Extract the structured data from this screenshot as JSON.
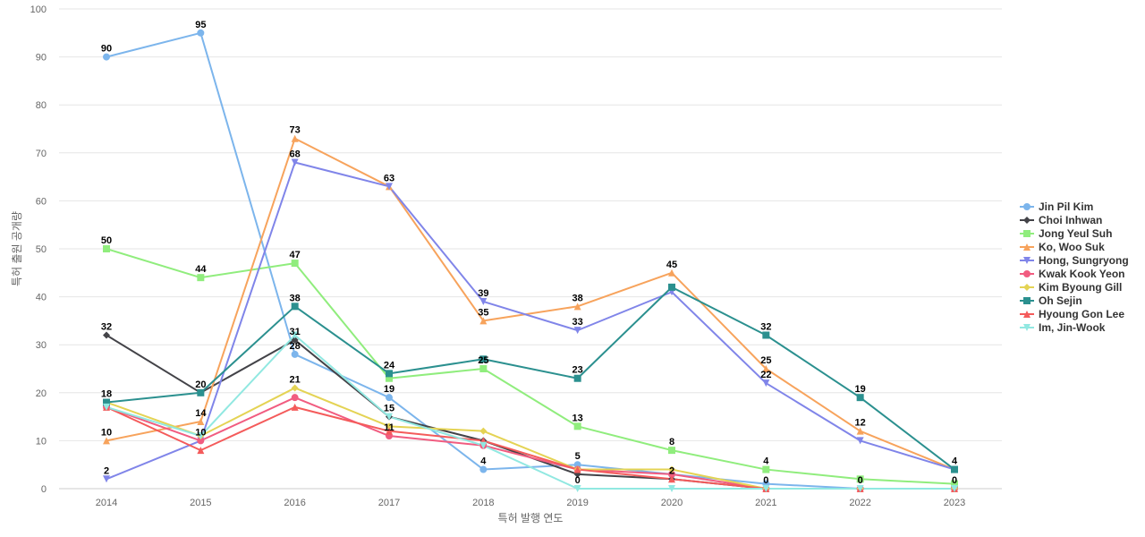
{
  "chart_data": {
    "type": "line",
    "title": "",
    "xlabel": "특허 발행 연도",
    "ylabel": "특허 출원 공개량",
    "ylim": [
      0,
      100
    ],
    "yticks": [
      0,
      10,
      20,
      30,
      40,
      50,
      60,
      70,
      80,
      90,
      100
    ],
    "x": [
      "2014",
      "2015",
      "2016",
      "2017",
      "2018",
      "2019",
      "2020",
      "2021",
      "2022",
      "2023"
    ],
    "grid": "horizontal",
    "legend_position": "right",
    "series": [
      {
        "name": "Jin Pil Kim",
        "color": "#7cb5ec",
        "marker": "circle",
        "values": [
          90,
          95,
          28,
          19,
          4,
          5,
          3,
          1,
          0,
          0
        ],
        "labels": [
          true,
          true,
          true,
          true,
          true,
          true,
          false,
          false,
          false,
          false
        ]
      },
      {
        "name": "Choi Inhwan",
        "color": "#434348",
        "marker": "diamond",
        "values": [
          32,
          20,
          31,
          15,
          10,
          3,
          2,
          0,
          0,
          0
        ],
        "labels": [
          true,
          false,
          true,
          false,
          false,
          false,
          false,
          false,
          false,
          false
        ]
      },
      {
        "name": "Jong Yeul Suh",
        "color": "#90ed7d",
        "marker": "square",
        "values": [
          50,
          44,
          47,
          23,
          25,
          13,
          8,
          4,
          2,
          1
        ],
        "labels": [
          true,
          true,
          true,
          false,
          true,
          true,
          true,
          true,
          false,
          false
        ]
      },
      {
        "name": "Ko, Woo Suk",
        "color": "#f7a35c",
        "marker": "triangle",
        "values": [
          10,
          14,
          73,
          63,
          35,
          38,
          45,
          25,
          12,
          4
        ],
        "labels": [
          true,
          true,
          true,
          false,
          true,
          true,
          true,
          true,
          true,
          false
        ]
      },
      {
        "name": "Hong, Sungryong",
        "color": "#8085e9",
        "marker": "triangle-down",
        "values": [
          2,
          10,
          68,
          63,
          39,
          33,
          41,
          22,
          10,
          4
        ],
        "labels": [
          true,
          false,
          true,
          true,
          true,
          true,
          false,
          true,
          false,
          false
        ]
      },
      {
        "name": "Kwak Kook Yeon",
        "color": "#f15c80",
        "marker": "circle",
        "values": [
          17,
          10,
          19,
          11,
          9,
          4,
          3,
          0,
          0,
          0
        ],
        "labels": [
          false,
          true,
          false,
          true,
          false,
          false,
          false,
          false,
          false,
          false
        ]
      },
      {
        "name": "Kim Byoung Gill",
        "color": "#e4d354",
        "marker": "diamond",
        "values": [
          18,
          11,
          21,
          13,
          12,
          4,
          4,
          0,
          0,
          0
        ],
        "labels": [
          false,
          false,
          true,
          false,
          false,
          false,
          false,
          false,
          false,
          false
        ]
      },
      {
        "name": "Oh Sejin",
        "color": "#2b908f",
        "marker": "square",
        "values": [
          18,
          20,
          38,
          24,
          27,
          23,
          42,
          32,
          19,
          4
        ],
        "labels": [
          true,
          true,
          true,
          true,
          false,
          true,
          false,
          true,
          true,
          true
        ]
      },
      {
        "name": "Hyoung Gon Lee",
        "color": "#f45b5b",
        "marker": "triangle",
        "values": [
          17,
          8,
          17,
          12,
          10,
          4,
          2,
          0,
          0,
          0
        ],
        "labels": [
          false,
          false,
          false,
          false,
          false,
          false,
          true,
          true,
          false,
          false
        ]
      },
      {
        "name": "Im, Jin-Wook",
        "color": "#91e8e1",
        "marker": "triangle-down",
        "values": [
          17,
          11,
          32,
          15,
          9,
          0,
          0,
          0,
          0,
          0
        ],
        "labels": [
          false,
          false,
          false,
          true,
          false,
          true,
          false,
          false,
          true,
          true
        ]
      }
    ]
  }
}
